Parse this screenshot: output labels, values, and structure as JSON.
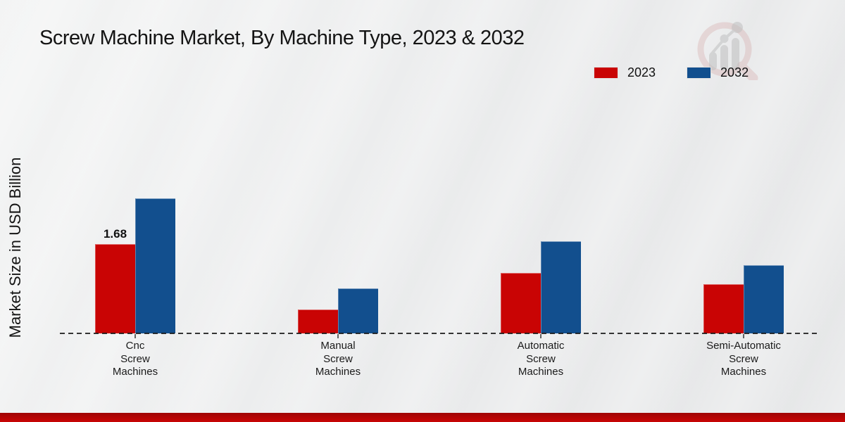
{
  "title": "Screw Machine Market, By Machine Type, 2023 & 2032",
  "legend": {
    "items": [
      {
        "label": "2023",
        "color": "#c90404"
      },
      {
        "label": "2032",
        "color": "#124f8e"
      }
    ]
  },
  "watermark": {
    "icon": "market-research-magnifier-logo"
  },
  "footer": {
    "accent_bar_color": "#b30404"
  },
  "chart_data": {
    "type": "bar",
    "title": "Screw Machine Market, By Machine Type, 2023 & 2032",
    "ylabel": "Market Size in USD Billion",
    "xlabel": "",
    "units": "USD Billion",
    "categories": [
      "Cnc Screw Machines",
      "Manual Screw Machines",
      "Automatic Screw Machines",
      "Semi-Automatic Screw Machines"
    ],
    "category_label_lines": [
      [
        "Cnc",
        "Screw",
        "Machines"
      ],
      [
        "Manual",
        "Screw",
        "Machines"
      ],
      [
        "Automatic",
        "Screw",
        "Machines"
      ],
      [
        "Semi-Automatic",
        "Screw",
        "Machines"
      ]
    ],
    "series": [
      {
        "name": "2023",
        "color": "#c90404",
        "values": [
          1.68,
          0.45,
          1.14,
          0.93
        ]
      },
      {
        "name": "2032",
        "color": "#124f8e",
        "values": [
          2.54,
          0.85,
          1.73,
          1.28
        ]
      }
    ],
    "value_labels": [
      {
        "series_index": 0,
        "category_index": 0,
        "text": "1.68"
      }
    ],
    "ylim": [
      0,
      3
    ],
    "grid": false,
    "baseline_style": "dashed",
    "legend_position": "top-right"
  }
}
